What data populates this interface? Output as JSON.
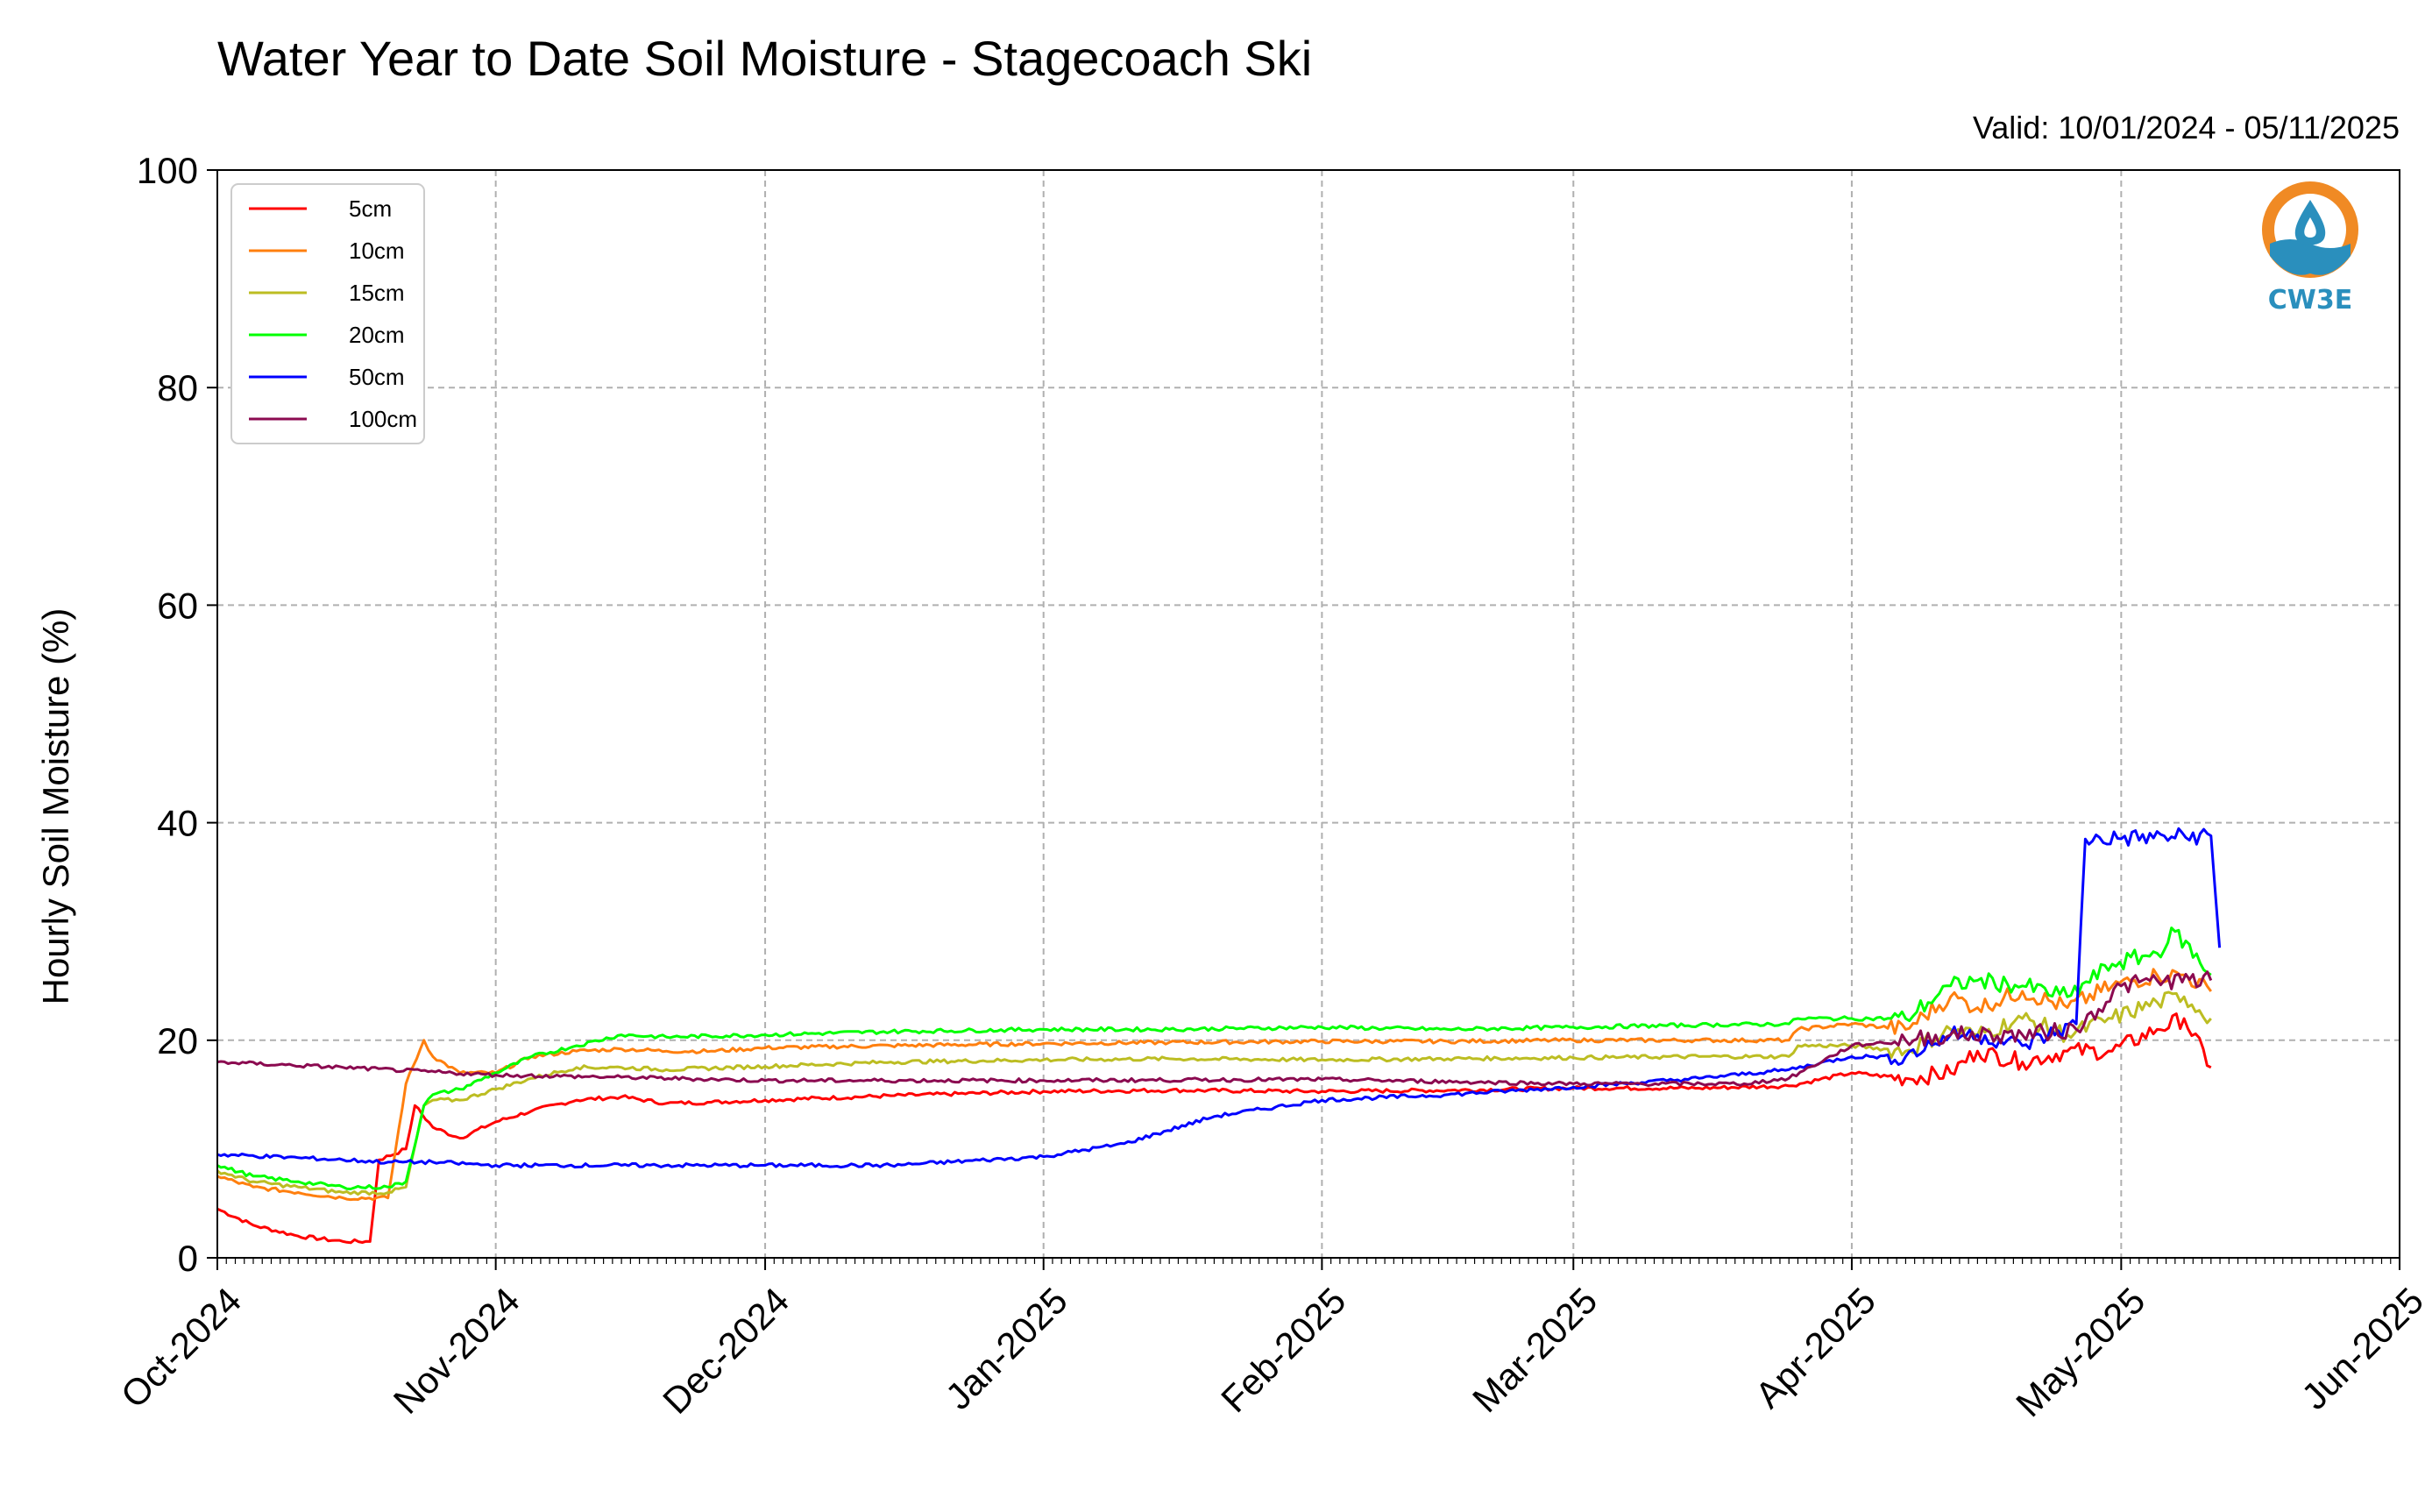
{
  "chart_data": {
    "type": "line",
    "title": "Water Year to Date Soil Moisture - Stagecoach Ski",
    "subtitle": "Valid: 10/01/2024 - 05/11/2025",
    "xlabel": "",
    "ylabel": "Hourly Soil Moisture (%)",
    "ylim": [
      0,
      100
    ],
    "xlim": [
      "2024-10-01",
      "2025-06-01"
    ],
    "yticks": [
      "0",
      "20",
      "40",
      "60",
      "80",
      "100"
    ],
    "xticks": [
      "Oct-2024",
      "Nov-2024",
      "Dec-2024",
      "Jan-2025",
      "Feb-2025",
      "Mar-2025",
      "Apr-2025",
      "May-2025",
      "Jun-2025"
    ],
    "grid": true,
    "legend_position": "top-left",
    "logo": {
      "text": "CW3E",
      "color": "#2a8fbd",
      "accent": "#f08a24"
    },
    "series": [
      {
        "name": "5cm",
        "color": "#ff0000",
        "x": [
          "2024-10-01",
          "2024-10-05",
          "2024-10-10",
          "2024-10-15",
          "2024-10-18",
          "2024-10-19",
          "2024-10-22",
          "2024-10-23",
          "2024-10-25",
          "2024-10-28",
          "2024-11-01",
          "2024-11-05",
          "2024-11-10",
          "2024-11-15",
          "2024-11-20",
          "2024-11-25",
          "2024-12-01",
          "2024-12-15",
          "2025-01-01",
          "2025-01-15",
          "2025-02-01",
          "2025-02-15",
          "2025-03-01",
          "2025-03-15",
          "2025-03-25",
          "2025-04-01",
          "2025-04-07",
          "2025-04-12",
          "2025-04-15",
          "2025-04-20",
          "2025-04-25",
          "2025-04-30",
          "2025-05-05",
          "2025-05-08",
          "2025-05-11"
        ],
        "y": [
          4.5,
          3,
          2,
          1.5,
          1.5,
          9,
          10,
          14,
          12,
          11,
          12.5,
          13.5,
          14.5,
          14.8,
          14.2,
          14.3,
          14.5,
          14.9,
          15.3,
          15.4,
          15.3,
          15.4,
          15.6,
          15.6,
          15.8,
          17,
          16.5,
          17,
          19,
          18,
          19,
          19,
          21,
          22,
          17.5
        ]
      },
      {
        "name": "10cm",
        "color": "#ff7f0e",
        "x": [
          "2024-10-01",
          "2024-10-05",
          "2024-10-10",
          "2024-10-15",
          "2024-10-20",
          "2024-10-22",
          "2024-10-24",
          "2024-10-25",
          "2024-10-28",
          "2024-11-01",
          "2024-11-05",
          "2024-11-10",
          "2024-11-15",
          "2024-11-20",
          "2024-11-25",
          "2024-12-01",
          "2024-12-15",
          "2025-01-01",
          "2025-01-15",
          "2025-02-01",
          "2025-02-15",
          "2025-03-01",
          "2025-03-15",
          "2025-03-25",
          "2025-03-26",
          "2025-04-01",
          "2025-04-07",
          "2025-04-12",
          "2025-04-15",
          "2025-04-20",
          "2025-04-25",
          "2025-04-30",
          "2025-05-05",
          "2025-05-08",
          "2025-05-11"
        ],
        "y": [
          7.5,
          6.5,
          6,
          5.5,
          5.5,
          16,
          20,
          18.5,
          17,
          17,
          18.5,
          19,
          19.2,
          19,
          19,
          19.3,
          19.5,
          19.7,
          19.8,
          19.9,
          19.9,
          20,
          20,
          20,
          21,
          21.5,
          21,
          24,
          23,
          24.5,
          23,
          25,
          26,
          26,
          24.5
        ]
      },
      {
        "name": "15cm",
        "color": "#bcbd22",
        "x": [
          "2024-10-01",
          "2024-10-05",
          "2024-10-10",
          "2024-10-15",
          "2024-10-20",
          "2024-10-22",
          "2024-10-24",
          "2024-10-25",
          "2024-10-28",
          "2024-11-01",
          "2024-11-05",
          "2024-11-10",
          "2024-11-15",
          "2024-11-20",
          "2024-12-01",
          "2024-12-15",
          "2025-01-01",
          "2025-01-15",
          "2025-02-01",
          "2025-02-15",
          "2025-03-01",
          "2025-03-15",
          "2025-03-25",
          "2025-03-26",
          "2025-04-01",
          "2025-04-07",
          "2025-04-12",
          "2025-04-15",
          "2025-04-20",
          "2025-04-25",
          "2025-04-30",
          "2025-05-05",
          "2025-05-08",
          "2025-05-11"
        ],
        "y": [
          8,
          7,
          6.5,
          6,
          6,
          6.5,
          14,
          14.5,
          14.5,
          15.5,
          16.5,
          17.5,
          17.5,
          17.3,
          17.6,
          18,
          18.2,
          18.3,
          18.2,
          18.3,
          18.4,
          18.5,
          18.5,
          19.5,
          19.5,
          19,
          21,
          20.5,
          22,
          20.5,
          22,
          23.5,
          24,
          22
        ]
      },
      {
        "name": "20cm",
        "color": "#00ff00",
        "x": [
          "2024-10-01",
          "2024-10-05",
          "2024-10-10",
          "2024-10-15",
          "2024-10-20",
          "2024-10-22",
          "2024-10-24",
          "2024-10-25",
          "2024-10-28",
          "2024-11-01",
          "2024-11-05",
          "2024-11-10",
          "2024-11-15",
          "2024-11-20",
          "2024-12-01",
          "2024-12-15",
          "2025-01-01",
          "2025-01-15",
          "2025-02-01",
          "2025-02-15",
          "2025-03-01",
          "2025-03-15",
          "2025-03-25",
          "2025-03-26",
          "2025-04-01",
          "2025-04-07",
          "2025-04-12",
          "2025-04-15",
          "2025-04-20",
          "2025-04-25",
          "2025-04-30",
          "2025-05-05",
          "2025-05-07",
          "2025-05-11"
        ],
        "y": [
          8.5,
          7.5,
          7,
          6.5,
          6.5,
          7,
          14,
          15,
          15.5,
          17,
          18.5,
          19.5,
          20.5,
          20.3,
          20.5,
          20.8,
          21,
          21,
          21.2,
          21,
          21.2,
          21.4,
          21.5,
          22,
          22,
          22,
          25,
          25.5,
          25,
          24,
          27,
          28,
          30,
          26
        ]
      },
      {
        "name": "50cm",
        "color": "#0000ff",
        "x": [
          "2024-10-01",
          "2024-10-10",
          "2024-10-15",
          "2024-10-20",
          "2024-10-25",
          "2024-11-01",
          "2024-11-15",
          "2024-12-01",
          "2024-12-15",
          "2025-01-01",
          "2025-01-10",
          "2025-01-20",
          "2025-02-01",
          "2025-02-15",
          "2025-03-01",
          "2025-03-15",
          "2025-03-25",
          "2025-04-01",
          "2025-04-07",
          "2025-04-12",
          "2025-04-15",
          "2025-04-20",
          "2025-04-26",
          "2025-04-27",
          "2025-05-11",
          "2025-05-11T23"
        ],
        "y": [
          9.5,
          9.2,
          9,
          8.8,
          8.8,
          8.5,
          8.5,
          8.5,
          8.5,
          9.3,
          10.5,
          13,
          14.5,
          15,
          15.7,
          16.5,
          17.3,
          18.5,
          18.5,
          20.5,
          20.5,
          19.5,
          21.5,
          38.5,
          38.8,
          28.5
        ]
      },
      {
        "name": "100cm",
        "color": "#8b0a50",
        "x": [
          "2024-10-01",
          "2024-10-15",
          "2024-11-01",
          "2024-11-15",
          "2024-12-01",
          "2025-01-01",
          "2025-02-01",
          "2025-03-01",
          "2025-03-20",
          "2025-03-25",
          "2025-04-01",
          "2025-04-07",
          "2025-04-12",
          "2025-04-20",
          "2025-04-26",
          "2025-05-01",
          "2025-05-05",
          "2025-05-11"
        ],
        "y": [
          18,
          17.5,
          16.8,
          16.6,
          16.3,
          16.3,
          16.4,
          16,
          16,
          16.5,
          19.5,
          20,
          20.5,
          20.5,
          21,
          25,
          25.5,
          25.5
        ]
      }
    ]
  }
}
